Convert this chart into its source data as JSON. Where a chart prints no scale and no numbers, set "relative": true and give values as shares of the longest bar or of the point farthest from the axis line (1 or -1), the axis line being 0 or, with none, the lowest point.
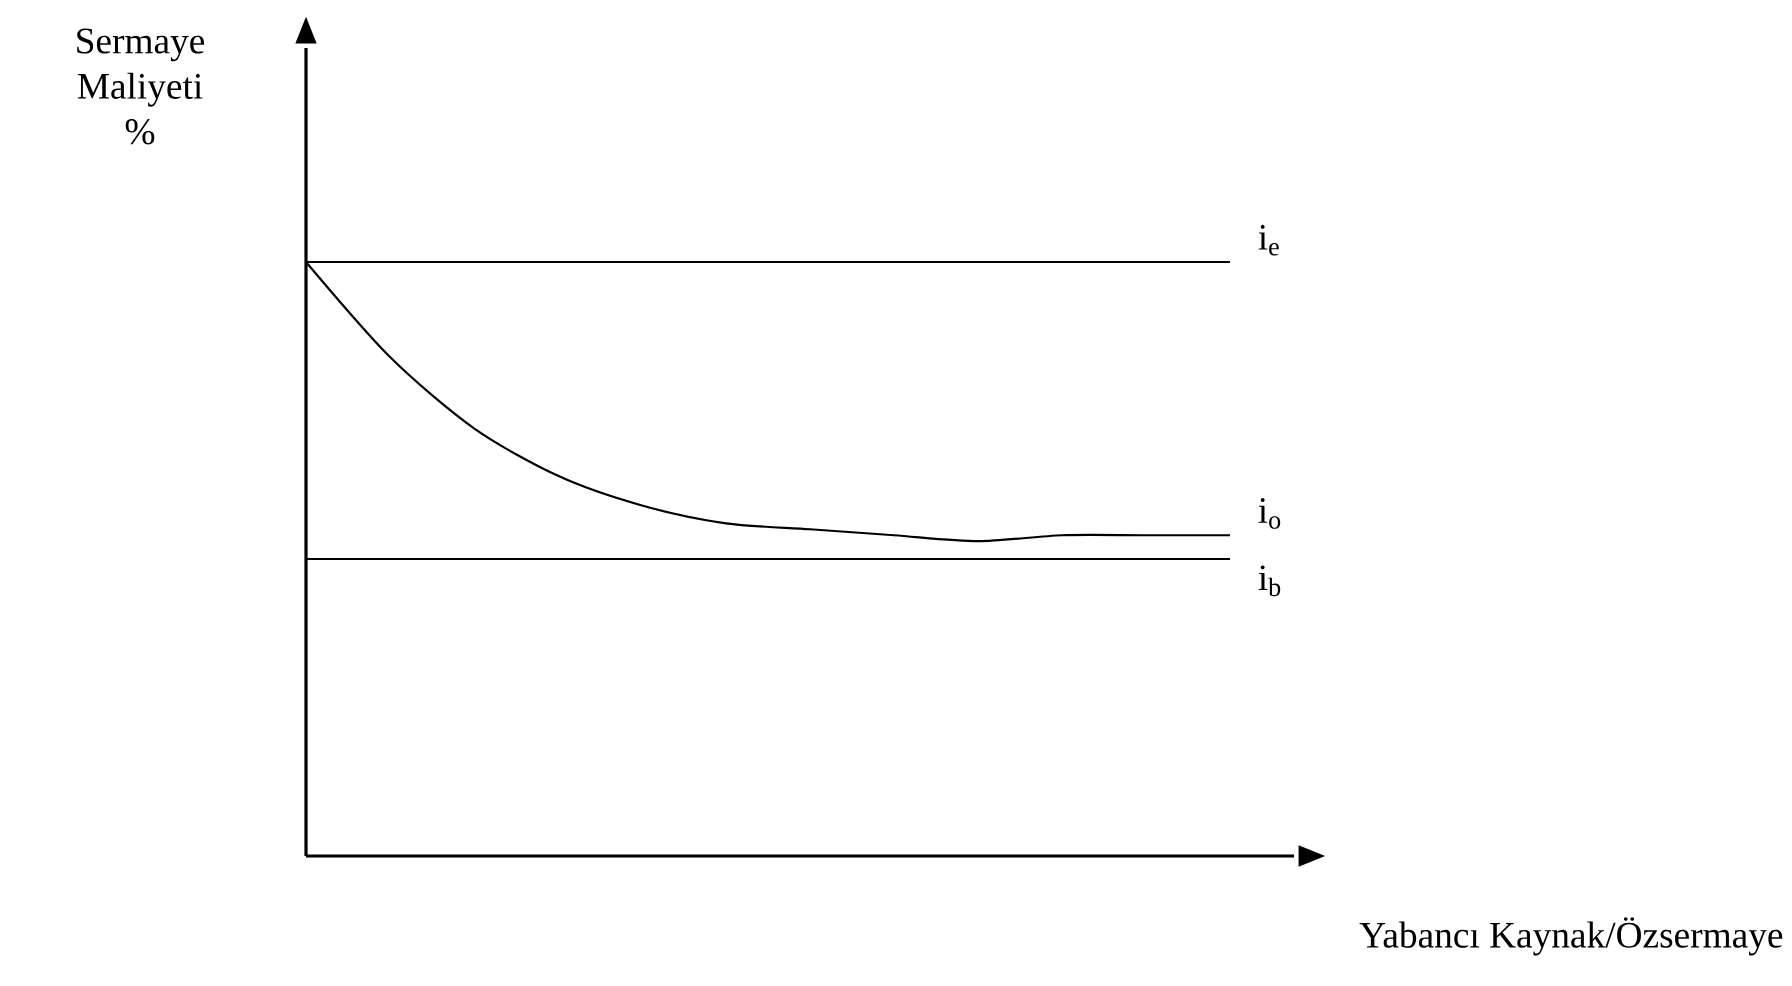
{
  "chart_data": {
    "type": "line",
    "relative": true,
    "xlabel": "Yabancı Kaynak/Özsermaye",
    "ylabel": "Sermaye Maliyeti %",
    "categories": [
      null,
      null,
      null,
      null,
      null,
      null,
      null,
      null,
      null,
      null,
      null,
      null
    ],
    "series": [
      {
        "name": "i$_{e}$",
        "color": "#000000",
        "values": [
          1,
          1,
          1,
          1,
          1,
          1,
          1,
          1,
          1,
          1,
          1,
          1
        ]
      },
      {
        "name": "i$_{o}$",
        "color": "#000000",
        "values": [
          1,
          0.84,
          0.72,
          0.64,
          0.59,
          0.56,
          0.55,
          0.54,
          0.53,
          0.54,
          0.54,
          0.54
        ]
      },
      {
        "name": "i$_{b}$",
        "color": "#000000",
        "values": [
          0.5,
          0.5,
          0.5,
          0.5,
          0.5,
          0.5,
          0.5,
          0.5,
          0.5,
          0.5,
          0.5,
          0.5
        ]
      }
    ]
  }
}
